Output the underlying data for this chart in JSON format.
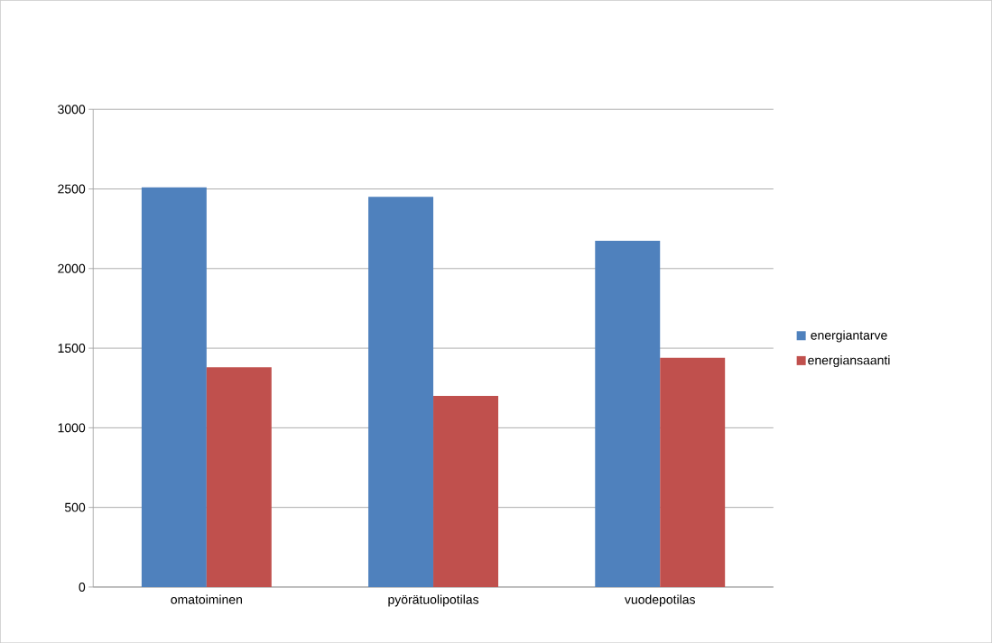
{
  "chart_data": {
    "type": "bar",
    "categories": [
      "omatoiminen",
      "pyörätuolipotilas",
      "vuodepotilas"
    ],
    "series": [
      {
        "name": "energiantarve",
        "color": "#4f81bd",
        "values": [
          2510,
          2450,
          2175
        ]
      },
      {
        "name": "energiansaanti",
        "color": "#c0504d",
        "values": [
          1380,
          1200,
          1440
        ]
      }
    ],
    "ylim": [
      0,
      3000
    ],
    "yticks": [
      0,
      500,
      1000,
      1500,
      2000,
      2500,
      3000
    ],
    "grid": "y",
    "legend": "right"
  }
}
